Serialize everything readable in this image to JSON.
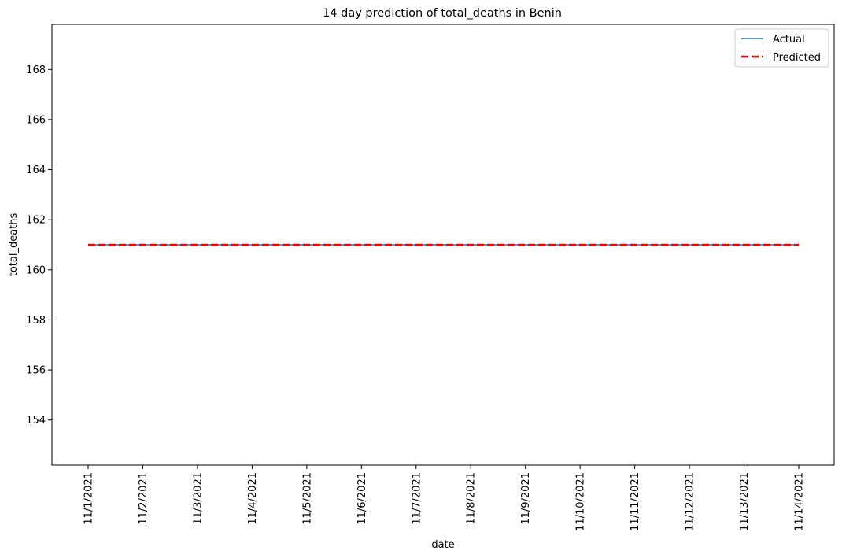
{
  "chart_data": {
    "type": "line",
    "title": "14 day prediction of total_deaths in Benin",
    "xlabel": "date",
    "ylabel": "total_deaths",
    "x": [
      "11/1/2021",
      "11/2/2021",
      "11/3/2021",
      "11/4/2021",
      "11/5/2021",
      "11/6/2021",
      "11/7/2021",
      "11/8/2021",
      "11/9/2021",
      "11/10/2021",
      "11/11/2021",
      "11/12/2021",
      "11/13/2021",
      "11/14/2021"
    ],
    "series": [
      {
        "name": "Actual",
        "color": "#1f77b4",
        "style": "solid",
        "values": [
          161,
          161,
          161,
          161,
          161,
          161,
          161,
          161,
          161,
          161,
          161,
          161,
          161,
          161
        ]
      },
      {
        "name": "Predicted",
        "color": "#ff0000",
        "style": "dashed",
        "values": [
          161,
          161,
          161,
          161,
          161,
          161,
          161,
          161,
          161,
          161,
          161,
          161,
          161,
          161
        ]
      }
    ],
    "ylim": [
      152.2,
      169.8
    ],
    "yticks": [
      154,
      156,
      158,
      160,
      162,
      164,
      166,
      168
    ],
    "grid": false,
    "legend": "top-right"
  }
}
